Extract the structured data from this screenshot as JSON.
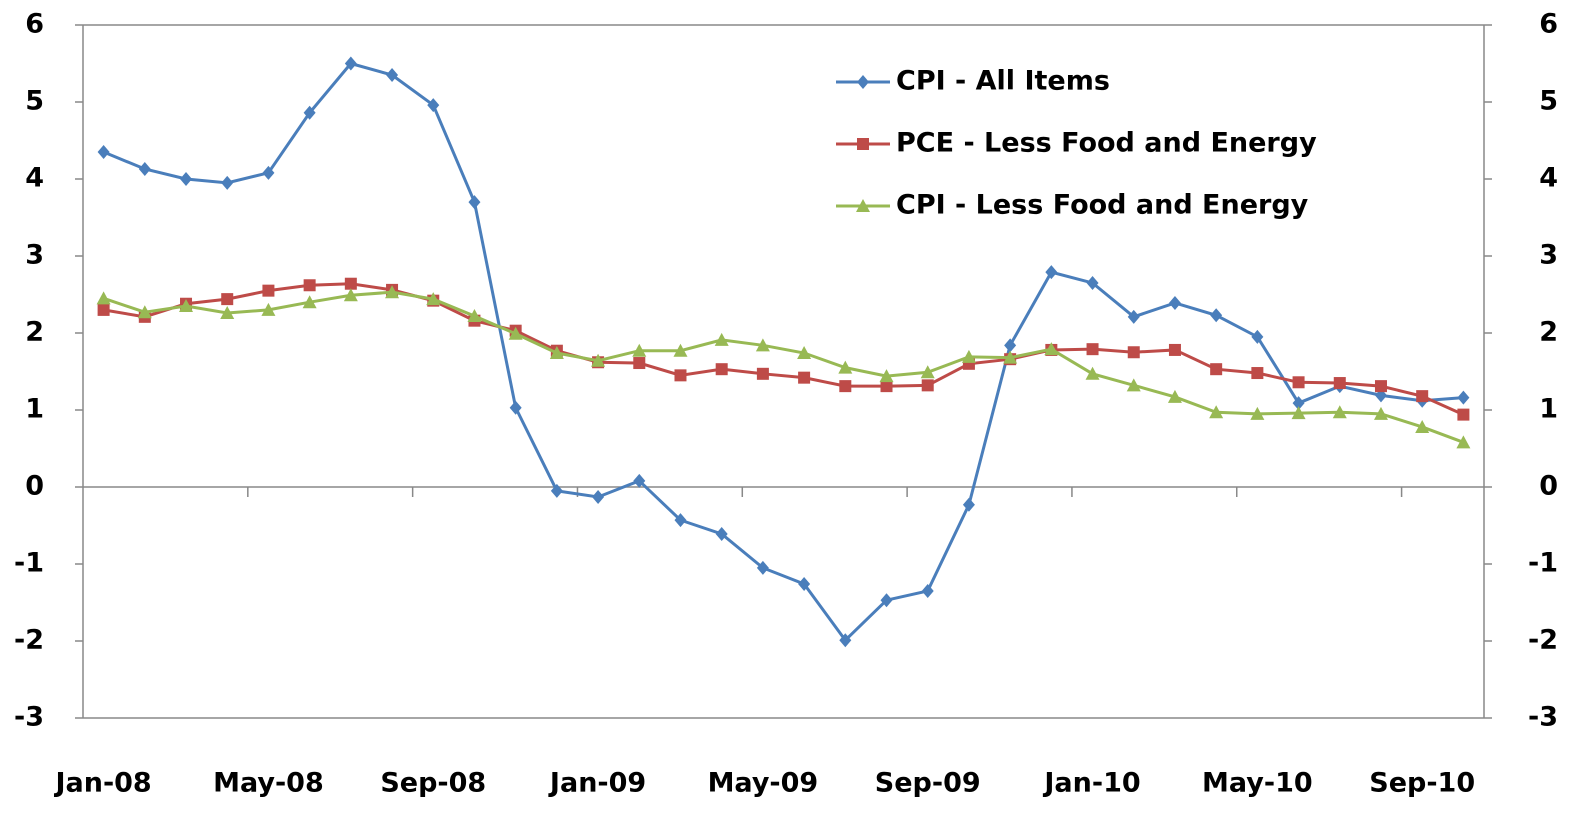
{
  "chart_data": {
    "type": "line",
    "categories": [
      "Jan-08",
      null,
      null,
      null,
      "May-08",
      null,
      null,
      null,
      "Sep-08",
      null,
      null,
      null,
      "Jan-09",
      null,
      null,
      null,
      "May-09",
      null,
      null,
      null,
      "Sep-09",
      null,
      null,
      null,
      "Jan-10",
      null,
      null,
      null,
      "May-10",
      null,
      null,
      null,
      "Sep-10",
      null
    ],
    "series": [
      {
        "name": "CPI - All Items",
        "color": "#4a7ebb",
        "marker": "diamond",
        "values": [
          4.35,
          4.13,
          4.0,
          3.95,
          4.08,
          4.86,
          5.5,
          5.35,
          4.96,
          3.7,
          1.03,
          -0.05,
          -0.13,
          0.08,
          -0.43,
          -0.61,
          -1.05,
          -1.26,
          -1.99,
          -1.47,
          -1.35,
          -0.23,
          1.84,
          2.79,
          2.65,
          2.21,
          2.39,
          2.23,
          1.95,
          1.09,
          1.31,
          1.19,
          1.12,
          1.16
        ]
      },
      {
        "name": "PCE - Less Food and Energy",
        "color": "#be4b48",
        "marker": "square",
        "values": [
          2.3,
          2.21,
          2.38,
          2.44,
          2.55,
          2.62,
          2.64,
          2.56,
          2.42,
          2.16,
          2.03,
          1.77,
          1.62,
          1.61,
          1.45,
          1.53,
          1.47,
          1.42,
          1.31,
          1.31,
          1.32,
          1.6,
          1.66,
          1.78,
          1.79,
          1.75,
          1.78,
          1.53,
          1.48,
          1.36,
          1.35,
          1.31,
          1.18,
          0.94
        ]
      },
      {
        "name": "CPI - Less Food and Energy",
        "color": "#98b954",
        "marker": "triangle",
        "values": [
          2.45,
          2.27,
          2.35,
          2.26,
          2.3,
          2.4,
          2.49,
          2.53,
          2.44,
          2.22,
          1.99,
          1.74,
          1.64,
          1.77,
          1.77,
          1.91,
          1.84,
          1.74,
          1.55,
          1.44,
          1.49,
          1.69,
          1.68,
          1.79,
          1.47,
          1.32,
          1.17,
          0.97,
          0.95,
          0.96,
          0.97,
          0.95,
          0.78,
          0.58
        ]
      }
    ],
    "ylim": [
      -3,
      6
    ],
    "yticks": [
      -3,
      -2,
      -1,
      0,
      1,
      2,
      3,
      4,
      5,
      6
    ],
    "y2lim": [
      -3,
      6
    ],
    "y2ticks": [
      -3,
      -2,
      -1,
      0,
      1,
      2,
      3,
      4,
      5,
      6
    ],
    "grid": false,
    "legend": "top-right"
  }
}
